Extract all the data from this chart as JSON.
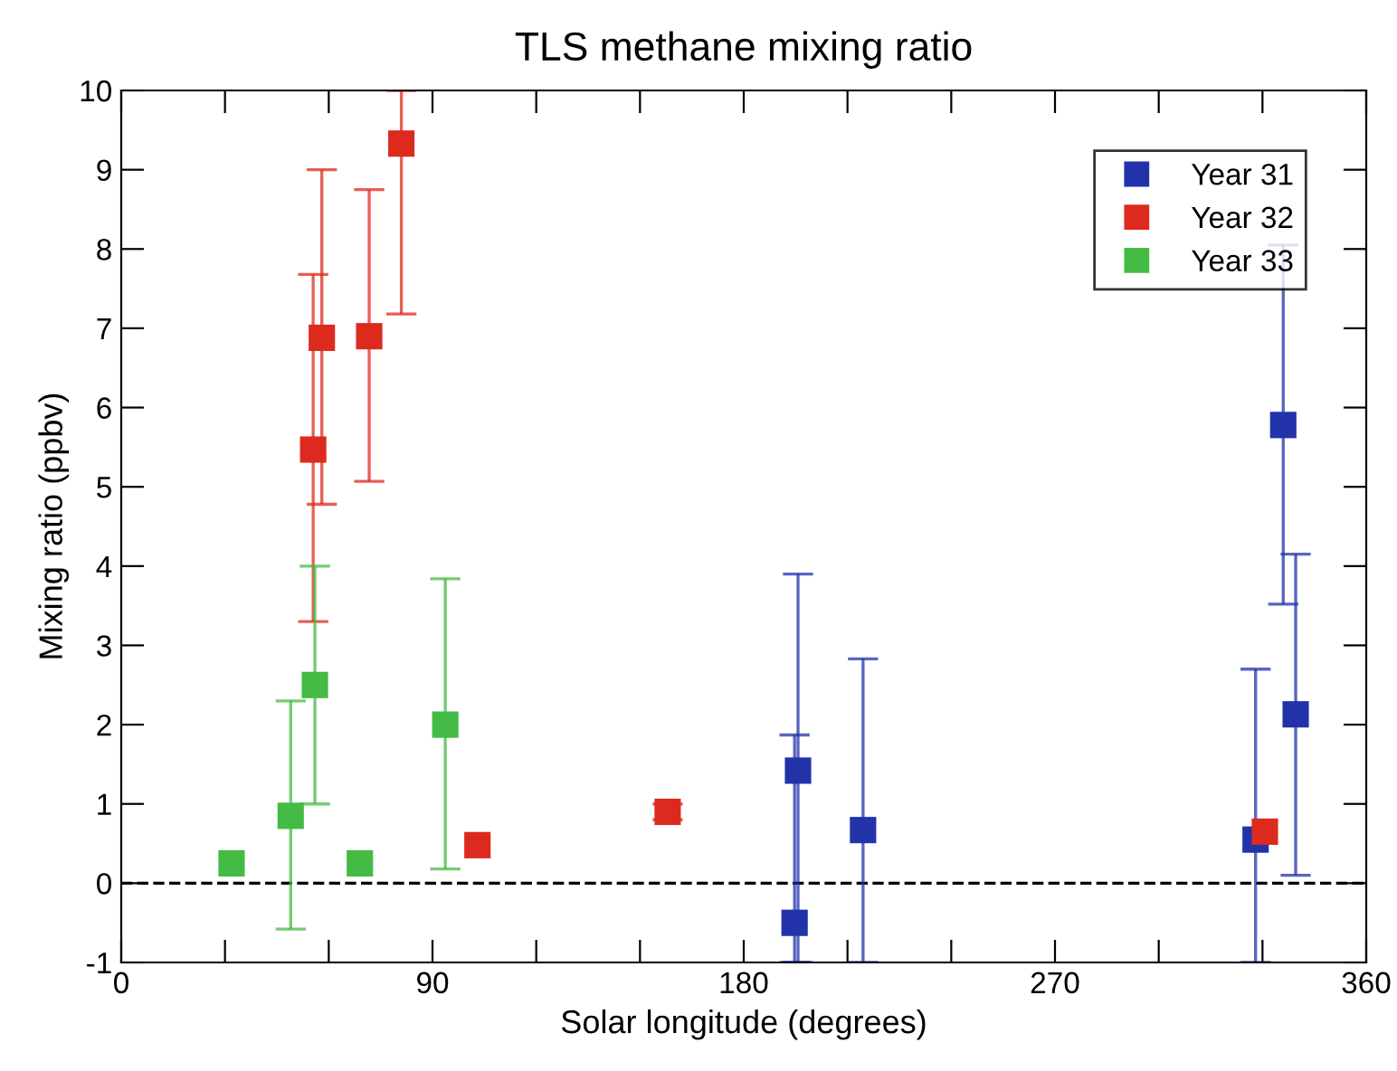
{
  "chart_data": {
    "type": "scatter",
    "title": "TLS methane mixing ratio",
    "xlabel": "Solar longitude (degrees)",
    "ylabel": "Mixing ratio (ppbv)",
    "xlim": [
      0,
      360
    ],
    "ylim": [
      -1,
      10
    ],
    "xticks": [
      0,
      {
        "value": 30,
        "label": null
      },
      {
        "value": 60,
        "label": null
      },
      90,
      {
        "value": 120,
        "label": null
      },
      {
        "value": 150,
        "label": null
      },
      180,
      {
        "value": 210,
        "label": null
      },
      {
        "value": 240,
        "label": null
      },
      270,
      {
        "value": 300,
        "label": null
      },
      {
        "value": 330,
        "label": null
      },
      360
    ],
    "yticks": [
      -1,
      0,
      1,
      2,
      3,
      4,
      5,
      6,
      7,
      8,
      9,
      10
    ],
    "marker": "square",
    "legend": "top right",
    "grid": false,
    "ref_lines": [
      {
        "axis": "y",
        "value": 0,
        "color": "#000000",
        "line_style": "dashed"
      }
    ],
    "series": [
      {
        "name": "Year 31",
        "color": "#2233aa",
        "x": [
          194.7,
          195.7,
          214.5,
          328,
          336,
          339.6
        ],
        "values": [
          -0.5,
          1.42,
          0.67,
          0.55,
          5.78,
          2.13
        ],
        "errors": [
          [
            -1,
            1.87
          ],
          [
            -1,
            3.9
          ],
          [
            -1,
            2.83
          ],
          [
            -1,
            2.7
          ],
          [
            3.52,
            8.05
          ],
          [
            0.1,
            4.15
          ]
        ]
      },
      {
        "name": "Year 32",
        "color": "#dd2a1e",
        "x": [
          55.5,
          58,
          71.7,
          81,
          103,
          158,
          330.7
        ],
        "values": [
          5.47,
          6.88,
          6.9,
          9.33,
          0.48,
          0.9,
          0.65
        ],
        "errors": [
          [
            3.3,
            7.68
          ],
          [
            4.78,
            9.0
          ],
          [
            5.07,
            8.75
          ],
          [
            7.18,
            10
          ],
          null,
          [
            0.8,
            1.0
          ],
          null
        ]
      },
      {
        "name": "Year 33",
        "color": "#44bb44",
        "x": [
          31.9,
          49,
          56,
          69,
          93.7
        ],
        "values": [
          0.25,
          0.85,
          2.5,
          0.25,
          2.0
        ],
        "errors": [
          null,
          [
            -0.58,
            2.3
          ],
          [
            1.0,
            4.0
          ],
          null,
          [
            0.18,
            3.84
          ]
        ]
      }
    ]
  }
}
